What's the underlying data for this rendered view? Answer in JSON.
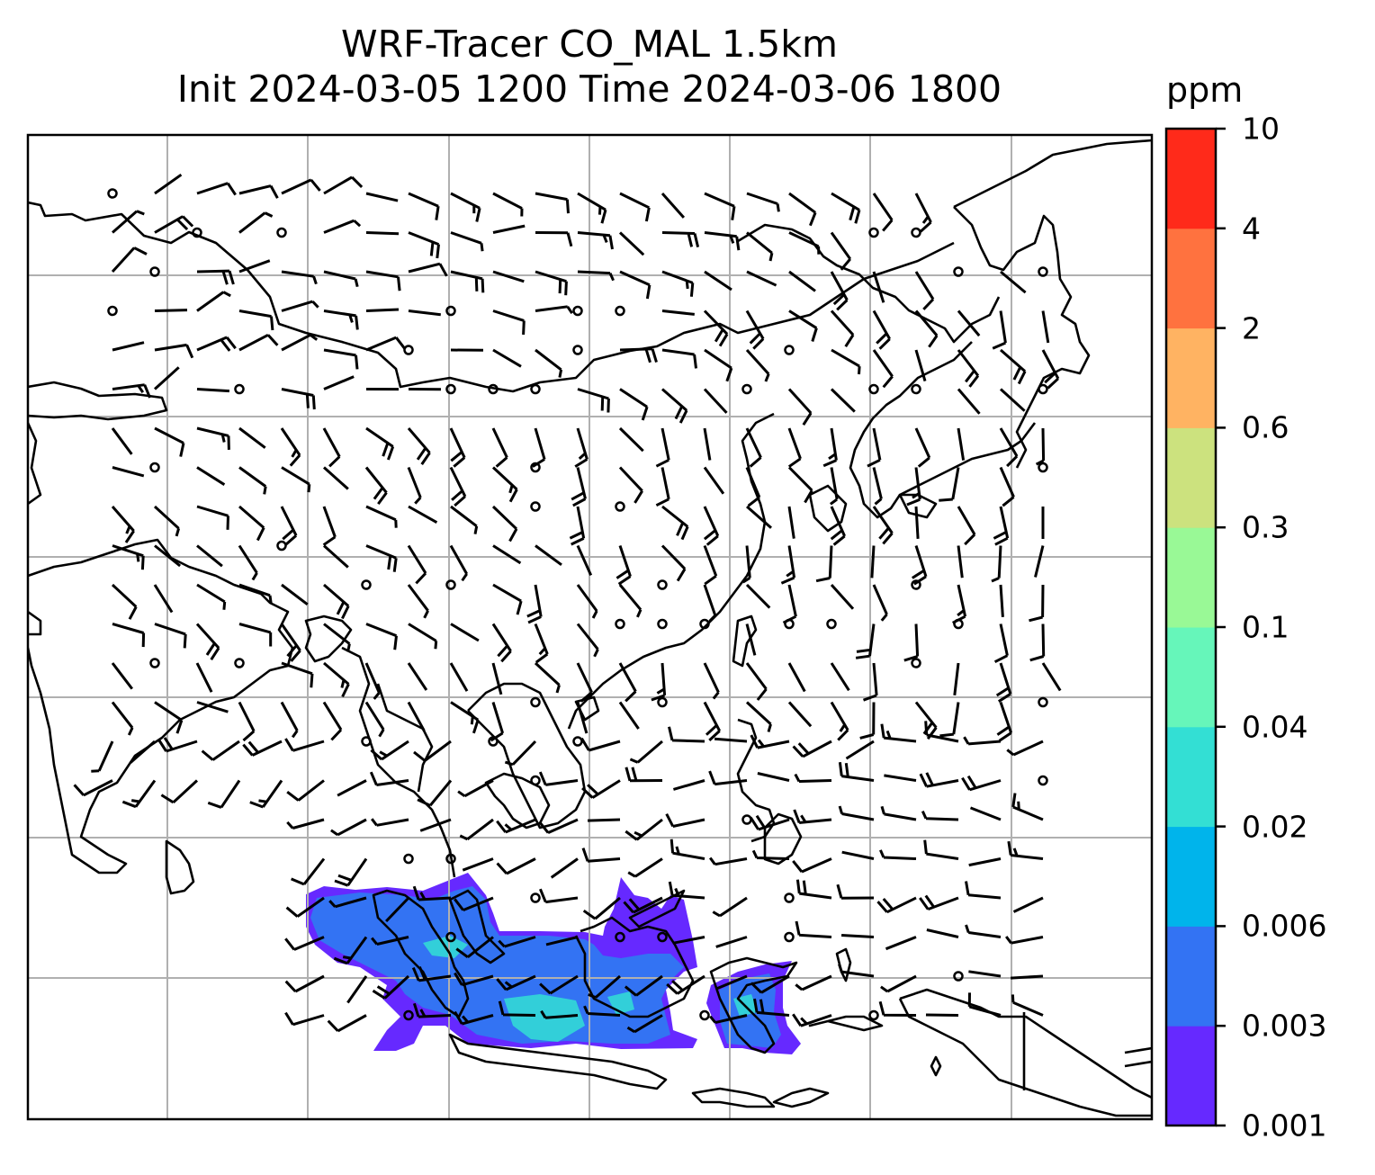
{
  "title": {
    "line1": "WRF-Tracer CO_MAL 1.5km",
    "line2": "Init 2024-03-05 1200 Time 2024-03-06 1800"
  },
  "colorbar": {
    "unit": "ppm",
    "ticks": [
      "0.001",
      "0.003",
      "0.006",
      "0.02",
      "0.04",
      "0.1",
      "0.3",
      "0.6",
      "2",
      "4",
      "10"
    ],
    "colors": [
      "#6629ff",
      "#3373f3",
      "#00b4eb",
      "#33dfd4",
      "#66f6ba",
      "#99f996",
      "#cce27e",
      "#ffb362",
      "#ff723f",
      "#ff2a1a"
    ]
  },
  "map": {
    "frame_color": "#000000",
    "grid_color": "#b0b0b0",
    "coast_color": "#000000",
    "plume_colors": [
      "#6629ff",
      "#3373f3",
      "#33dfd4"
    ]
  }
}
